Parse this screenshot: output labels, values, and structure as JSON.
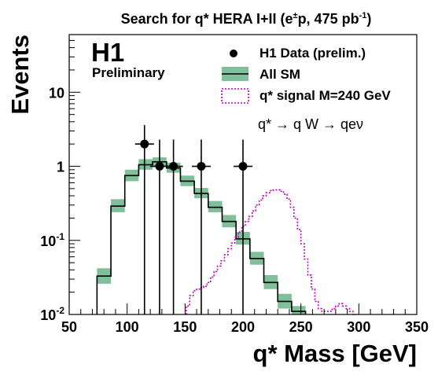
{
  "chart_data": {
    "type": "histogram",
    "title_main": "Search for q* HERA I+II (e",
    "title_pm": "±",
    "title_mid": "p, 475 pb",
    "title_sup": "-1",
    "title_close": ")",
    "experiment": "H1",
    "experiment_status": "Preliminary",
    "xlabel": "q* Mass [GeV]",
    "ylabel": "Events",
    "xlim": [
      50,
      350
    ],
    "ylim": [
      0.01,
      60
    ],
    "y_scale": "log",
    "x_ticks": [
      50,
      100,
      150,
      200,
      250,
      300,
      350
    ],
    "y_ticks": [
      {
        "value": 0.01,
        "base": "10",
        "exp": "-2"
      },
      {
        "value": 0.1,
        "base": "10",
        "exp": "-1"
      },
      {
        "value": 1,
        "base": "1",
        "exp": ""
      },
      {
        "value": 10,
        "base": "10",
        "exp": ""
      }
    ],
    "process_text": "q* → q W → qeν",
    "legend": [
      {
        "key": "data",
        "label": "H1 Data (prelim.)"
      },
      {
        "key": "sm",
        "label": "All SM"
      },
      {
        "key": "signal",
        "label": "q* signal M=240 GeV"
      }
    ],
    "colors": {
      "data": "#000000",
      "sm_line": "#000000",
      "sm_band": "#7fbf99",
      "signal": "#c000c0"
    },
    "series": [
      {
        "name": "H1 Data (prelim.)",
        "kind": "points",
        "points": [
          {
            "x": 115,
            "y": 2,
            "ylo": 0.01,
            "yhi": 3.6
          },
          {
            "x": 128,
            "y": 1,
            "ylo": 0.01,
            "yhi": 2.3
          },
          {
            "x": 140,
            "y": 1,
            "ylo": 0.01,
            "yhi": 2.3
          },
          {
            "x": 164,
            "y": 1,
            "ylo": 0.01,
            "yhi": 2.3
          },
          {
            "x": 200,
            "y": 1,
            "ylo": 0.01,
            "yhi": 2.3
          }
        ]
      },
      {
        "name": "All SM",
        "kind": "step_with_band",
        "bin_width": 12,
        "bins": [
          {
            "x0": 74,
            "y": 0.033,
            "lo": 0.026,
            "hi": 0.042
          },
          {
            "x0": 86,
            "y": 0.29,
            "lo": 0.24,
            "hi": 0.36
          },
          {
            "x0": 98,
            "y": 0.75,
            "lo": 0.63,
            "hi": 0.9
          },
          {
            "x0": 110,
            "y": 1.05,
            "lo": 0.9,
            "hi": 1.25
          },
          {
            "x0": 122,
            "y": 1.15,
            "lo": 1.0,
            "hi": 1.32
          },
          {
            "x0": 134,
            "y": 0.95,
            "lo": 0.82,
            "hi": 1.12
          },
          {
            "x0": 146,
            "y": 0.63,
            "lo": 0.54,
            "hi": 0.75
          },
          {
            "x0": 158,
            "y": 0.43,
            "lo": 0.37,
            "hi": 0.51
          },
          {
            "x0": 170,
            "y": 0.28,
            "lo": 0.24,
            "hi": 0.34
          },
          {
            "x0": 182,
            "y": 0.18,
            "lo": 0.15,
            "hi": 0.22
          },
          {
            "x0": 194,
            "y": 0.105,
            "lo": 0.088,
            "hi": 0.13
          },
          {
            "x0": 206,
            "y": 0.057,
            "lo": 0.047,
            "hi": 0.07
          },
          {
            "x0": 218,
            "y": 0.027,
            "lo": 0.022,
            "hi": 0.034
          },
          {
            "x0": 230,
            "y": 0.015,
            "lo": 0.012,
            "hi": 0.019
          },
          {
            "x0": 242,
            "y": 0.011,
            "lo": 0.0095,
            "hi": 0.013
          }
        ]
      },
      {
        "name": "q* signal M=240 GeV",
        "kind": "step",
        "x_edges": [
          151,
          154,
          157,
          160,
          163,
          166,
          169,
          172,
          175,
          178,
          181,
          184,
          187,
          190,
          193,
          196,
          199,
          202,
          205,
          208,
          211,
          214,
          217,
          220,
          223,
          226,
          229,
          232,
          235,
          238,
          241,
          244,
          247,
          250,
          253,
          256,
          259,
          262,
          265,
          268,
          271,
          274,
          277,
          280,
          283,
          286,
          289,
          292,
          295,
          298
        ],
        "values": [
          0.013,
          0.018,
          0.021,
          0.022,
          0.023,
          0.024,
          0.027,
          0.032,
          0.038,
          0.045,
          0.053,
          0.064,
          0.077,
          0.092,
          0.11,
          0.13,
          0.155,
          0.18,
          0.21,
          0.25,
          0.3,
          0.35,
          0.4,
          0.44,
          0.47,
          0.48,
          0.48,
          0.46,
          0.42,
          0.36,
          0.28,
          0.2,
          0.14,
          0.09,
          0.056,
          0.034,
          0.022,
          0.015,
          0.012,
          0.011,
          0.011,
          0.011,
          0.012,
          0.013,
          0.014,
          0.013,
          0.012,
          0.011,
          0.01
        ]
      }
    ]
  }
}
